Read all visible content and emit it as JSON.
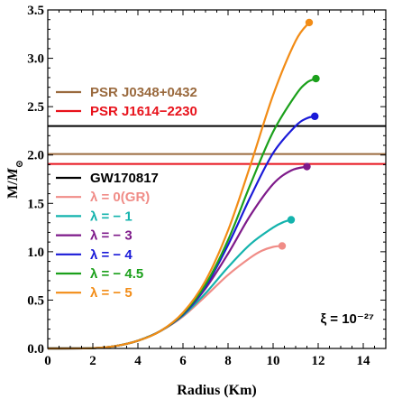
{
  "chart_data": {
    "type": "line",
    "xlabel": "Radius (Km)",
    "ylabel": "M/M⊙",
    "xlim": [
      0,
      15
    ],
    "ylim": [
      0,
      3.5
    ],
    "xticks": [
      0,
      2,
      4,
      6,
      8,
      10,
      12,
      14
    ],
    "yticks": [
      0.0,
      0.5,
      1.0,
      1.5,
      2.0,
      2.5,
      3.0,
      3.5
    ],
    "xtick_labels": [
      "0",
      "2",
      "4",
      "6",
      "8",
      "10",
      "12",
      "14"
    ],
    "ytick_labels": [
      "0.0",
      "0.5",
      "1.0",
      "1.5",
      "2.0",
      "2.5",
      "3.0",
      "3.5"
    ],
    "grid": false,
    "annotation": "ξ = 10⁻²⁷",
    "reference_lines": [
      {
        "name": "PSR J0348+0432",
        "y": 2.01,
        "color": "#9a6a3e"
      },
      {
        "name": "PSR J1614−2230",
        "y": 1.908,
        "color": "#e8121b"
      },
      {
        "name": "GW170817",
        "y": 2.3,
        "color": "#000000"
      }
    ],
    "series": [
      {
        "name": "λ = 0(GR)",
        "color": "#f08c87",
        "x": [
          0,
          2,
          3,
          4,
          5,
          6,
          7,
          8,
          9,
          9.5,
          10,
          10.4
        ],
        "y": [
          0,
          0.003,
          0.025,
          0.08,
          0.18,
          0.33,
          0.54,
          0.76,
          0.94,
          1.01,
          1.05,
          1.06
        ]
      },
      {
        "name": "λ = − 1",
        "color": "#14b3ad",
        "x": [
          0,
          2,
          3,
          4,
          5,
          6,
          7,
          8,
          9,
          10,
          10.5,
          10.8
        ],
        "y": [
          0,
          0.003,
          0.025,
          0.08,
          0.18,
          0.34,
          0.57,
          0.84,
          1.08,
          1.25,
          1.31,
          1.33
        ]
      },
      {
        "name": "λ = − 3",
        "color": "#7e1a8a",
        "x": [
          0,
          2,
          3,
          4,
          5,
          6,
          7,
          8,
          9,
          10,
          10.8,
          11.5
        ],
        "y": [
          0,
          0.003,
          0.025,
          0.08,
          0.18,
          0.35,
          0.62,
          0.98,
          1.38,
          1.7,
          1.84,
          1.88
        ]
      },
      {
        "name": "λ = − 4",
        "color": "#1a1ad8",
        "x": [
          0,
          2,
          3,
          4,
          5,
          6,
          7,
          8,
          9,
          10,
          11,
          11.5,
          11.85
        ],
        "y": [
          0,
          0.003,
          0.025,
          0.08,
          0.18,
          0.35,
          0.64,
          1.07,
          1.57,
          2.02,
          2.3,
          2.38,
          2.4
        ]
      },
      {
        "name": "λ = − 4.5",
        "color": "#1ba01b",
        "x": [
          0,
          2,
          3,
          4,
          5,
          6,
          7,
          8,
          9,
          10,
          11,
          11.5,
          11.9
        ],
        "y": [
          0,
          0.003,
          0.025,
          0.08,
          0.18,
          0.36,
          0.66,
          1.12,
          1.7,
          2.24,
          2.62,
          2.75,
          2.79
        ]
      },
      {
        "name": "λ = − 5",
        "color": "#f28c16",
        "x": [
          0,
          2,
          3,
          4,
          5,
          6,
          7,
          8,
          9,
          10,
          11,
          11.6
        ],
        "y": [
          0,
          0.003,
          0.025,
          0.08,
          0.18,
          0.37,
          0.7,
          1.22,
          1.9,
          2.62,
          3.18,
          3.37
        ]
      }
    ]
  },
  "legend_upper": [
    {
      "label": "PSR J0348+0432",
      "color": "#9a6a3e",
      "text_color": "#9a6a3e"
    },
    {
      "label": "PSR J1614−2230",
      "color": "#e8121b",
      "text_color": "#e8121b"
    }
  ],
  "legend_lower": [
    {
      "label": "GW170817",
      "color": "#000000",
      "text_color": "#000000"
    },
    {
      "label": "λ = 0(GR)",
      "color": "#f08c87",
      "text_color": "#f08c87"
    },
    {
      "label": "λ = − 1",
      "color": "#14b3ad",
      "text_color": "#14b3ad"
    },
    {
      "label": "λ = − 3",
      "color": "#7e1a8a",
      "text_color": "#7e1a8a"
    },
    {
      "label": "λ = − 4",
      "color": "#1a1ad8",
      "text_color": "#1a1ad8"
    },
    {
      "label": "λ = − 4.5",
      "color": "#1ba01b",
      "text_color": "#1ba01b"
    },
    {
      "label": "λ = − 5",
      "color": "#f28c16",
      "text_color": "#f28c16"
    }
  ]
}
